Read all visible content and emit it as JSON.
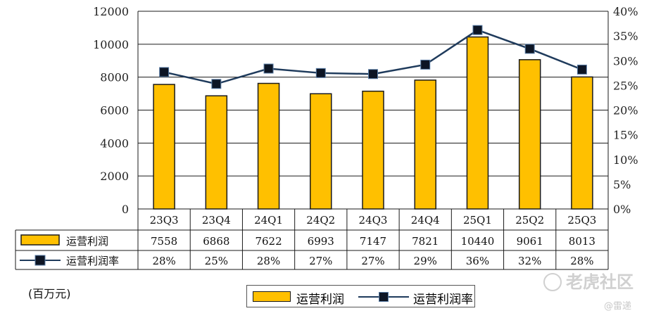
{
  "chart_data": {
    "type": "bar",
    "categories": [
      "23Q3",
      "23Q4",
      "24Q1",
      "24Q2",
      "24Q3",
      "24Q4",
      "25Q1",
      "25Q2",
      "25Q3"
    ],
    "series": [
      {
        "name": "运营利润",
        "type": "bar",
        "axis": "left",
        "color": "#FFC000",
        "values": [
          7558,
          6868,
          7622,
          6993,
          7147,
          7821,
          10440,
          9061,
          8013
        ]
      },
      {
        "name": "运营利润率",
        "type": "line",
        "axis": "right",
        "color": "#1F3B5C",
        "values": [
          27.7,
          25.3,
          28.4,
          27.5,
          27.3,
          29.2,
          36.2,
          32.4,
          28.2
        ],
        "table_labels": [
          "28%",
          "25%",
          "28%",
          "27%",
          "27%",
          "29%",
          "36%",
          "32%",
          "28%"
        ]
      }
    ],
    "y_left": {
      "min": 0,
      "max": 12000,
      "ticks": [
        0,
        2000,
        4000,
        6000,
        8000,
        10000,
        12000
      ]
    },
    "y_right": {
      "min": 0,
      "max": 40,
      "ticks": [
        "0%",
        "5%",
        "10%",
        "15%",
        "20%",
        "25%",
        "30%",
        "35%",
        "40%"
      ]
    },
    "unit_label": "(百万元)",
    "legend": [
      "运营利润",
      "运营利润率"
    ],
    "grid": true
  },
  "watermark": {
    "brand": "老虎社区",
    "author": "@雷递"
  }
}
